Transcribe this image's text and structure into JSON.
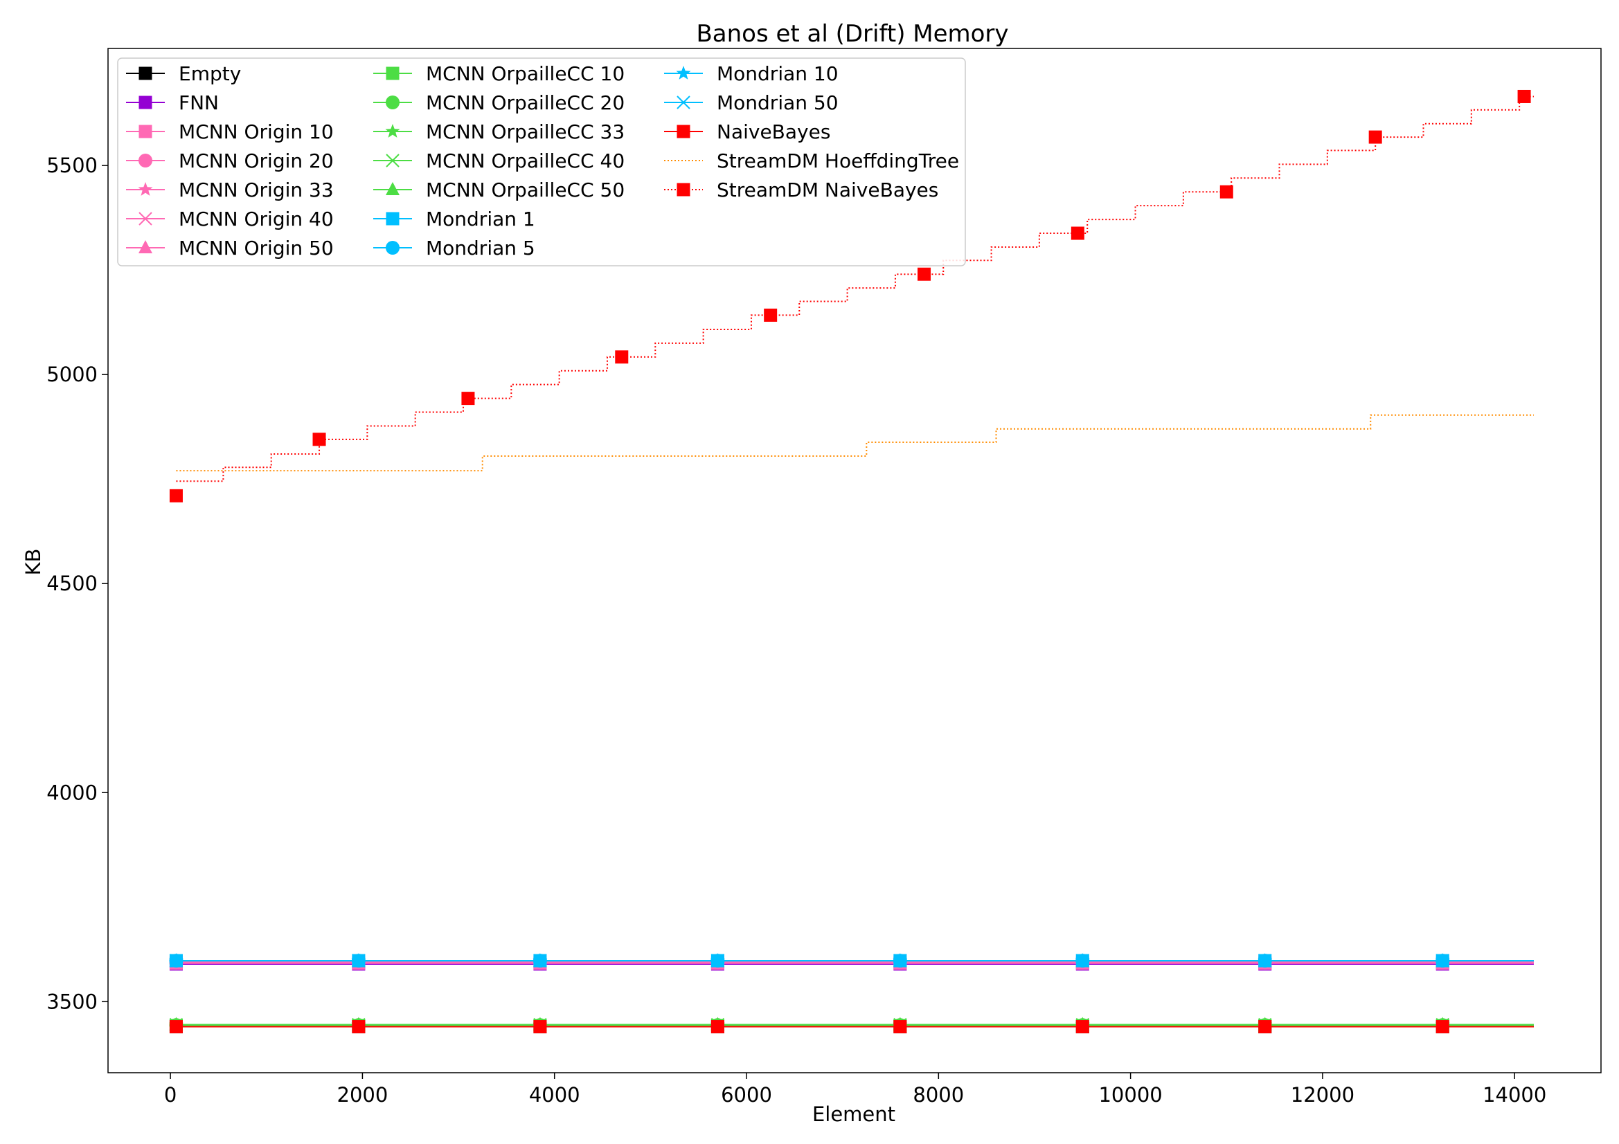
{
  "chart_data": {
    "type": "line",
    "title": "Banos et al (Drift) Memory",
    "xlabel": "Element",
    "ylabel": "KB",
    "xlim": [
      -650,
      14900
    ],
    "ylim": [
      3330,
      5780
    ],
    "xticks": [
      0,
      2000,
      4000,
      6000,
      8000,
      10000,
      12000,
      14000
    ],
    "yticks": [
      3500,
      4000,
      4500,
      5000,
      5500
    ],
    "grid": false,
    "legend_position": "top-left",
    "legend_columns": 3,
    "series": [
      {
        "name": "Empty",
        "color": "#000000",
        "marker": "square",
        "line": "solid",
        "x": [
          60,
          1960,
          3850,
          5700,
          7600,
          9500,
          11400,
          13250,
          14200
        ],
        "y": [
          3440,
          3440,
          3440,
          3440,
          3440,
          3440,
          3440,
          3440,
          3440
        ]
      },
      {
        "name": "FNN",
        "color": "#9400d3",
        "marker": "square",
        "line": "solid",
        "x": [
          60,
          1960,
          3850,
          5700,
          7600,
          9500,
          11400,
          13250,
          14200
        ],
        "y": [
          3590,
          3590,
          3590,
          3590,
          3590,
          3590,
          3590,
          3590,
          3590
        ]
      },
      {
        "name": "MCNN Origin 10",
        "color": "#ff69b4",
        "marker": "square",
        "line": "solid",
        "x": [
          60,
          1960,
          3850,
          5700,
          7600,
          9500,
          11400,
          13250,
          14200
        ],
        "y": [
          3592,
          3592,
          3592,
          3592,
          3592,
          3592,
          3592,
          3592,
          3592
        ]
      },
      {
        "name": "MCNN Origin 20",
        "color": "#ff69b4",
        "marker": "circle",
        "line": "solid",
        "x": [
          60,
          1960,
          3850,
          5700,
          7600,
          9500,
          11400,
          13250,
          14200
        ],
        "y": [
          3593,
          3593,
          3593,
          3593,
          3593,
          3593,
          3593,
          3593,
          3593
        ]
      },
      {
        "name": "MCNN Origin 33",
        "color": "#ff69b4",
        "marker": "star",
        "line": "solid",
        "x": [
          60,
          1960,
          3850,
          5700,
          7600,
          9500,
          11400,
          13250,
          14200
        ],
        "y": [
          3594,
          3594,
          3594,
          3594,
          3594,
          3594,
          3594,
          3594,
          3594
        ]
      },
      {
        "name": "MCNN Origin 40",
        "color": "#ff69b4",
        "marker": "x",
        "line": "solid",
        "x": [
          60,
          1960,
          3850,
          5700,
          7600,
          9500,
          11400,
          13250,
          14200
        ],
        "y": [
          3595,
          3595,
          3595,
          3595,
          3595,
          3595,
          3595,
          3595,
          3595
        ]
      },
      {
        "name": "MCNN Origin 50",
        "color": "#ff69b4",
        "marker": "triangle",
        "line": "solid",
        "x": [
          60,
          1960,
          3850,
          5700,
          7600,
          9500,
          11400,
          13250,
          14200
        ],
        "y": [
          3596,
          3596,
          3596,
          3596,
          3596,
          3596,
          3596,
          3596,
          3596
        ]
      },
      {
        "name": "MCNN OrpailleCC 10",
        "color": "#4cdd44",
        "marker": "square",
        "line": "solid",
        "x": [
          60,
          1960,
          3850,
          5700,
          7600,
          9500,
          11400,
          13250,
          14200
        ],
        "y": [
          3443,
          3443,
          3443,
          3443,
          3443,
          3443,
          3443,
          3443,
          3443
        ]
      },
      {
        "name": "MCNN OrpailleCC 20",
        "color": "#4cdd44",
        "marker": "circle",
        "line": "solid",
        "x": [
          60,
          1960,
          3850,
          5700,
          7600,
          9500,
          11400,
          13250,
          14200
        ],
        "y": [
          3444,
          3444,
          3444,
          3444,
          3444,
          3444,
          3444,
          3444,
          3444
        ]
      },
      {
        "name": "MCNN OrpailleCC 33",
        "color": "#4cdd44",
        "marker": "star",
        "line": "solid",
        "x": [
          60,
          1960,
          3850,
          5700,
          7600,
          9500,
          11400,
          13250,
          14200
        ],
        "y": [
          3444,
          3444,
          3444,
          3444,
          3444,
          3444,
          3444,
          3444,
          3444
        ]
      },
      {
        "name": "MCNN OrpailleCC 40",
        "color": "#4cdd44",
        "marker": "x",
        "line": "solid",
        "x": [
          60,
          1960,
          3850,
          5700,
          7600,
          9500,
          11400,
          13250,
          14200
        ],
        "y": [
          3445,
          3445,
          3445,
          3445,
          3445,
          3445,
          3445,
          3445,
          3445
        ]
      },
      {
        "name": "MCNN OrpailleCC 50",
        "color": "#4cdd44",
        "marker": "triangle",
        "line": "solid",
        "x": [
          60,
          1960,
          3850,
          5700,
          7600,
          9500,
          11400,
          13250,
          14200
        ],
        "y": [
          3445,
          3445,
          3445,
          3445,
          3445,
          3445,
          3445,
          3445,
          3445
        ]
      },
      {
        "name": "Mondrian 1",
        "color": "#00bfff",
        "marker": "square",
        "line": "solid",
        "x": [
          60,
          1960,
          3850,
          5700,
          7600,
          9500,
          11400,
          13250,
          14200
        ],
        "y": [
          3598,
          3598,
          3598,
          3598,
          3598,
          3598,
          3598,
          3598,
          3598
        ]
      },
      {
        "name": "Mondrian 5",
        "color": "#00bfff",
        "marker": "circle",
        "line": "solid",
        "x": [
          60,
          1960,
          3850,
          5700,
          7600,
          9500,
          11400,
          13250,
          14200
        ],
        "y": [
          3598,
          3598,
          3598,
          3598,
          3598,
          3598,
          3598,
          3598,
          3598
        ]
      },
      {
        "name": "Mondrian 10",
        "color": "#00bfff",
        "marker": "star",
        "line": "solid",
        "x": [
          60,
          1960,
          3850,
          5700,
          7600,
          9500,
          11400,
          13250,
          14200
        ],
        "y": [
          3598,
          3598,
          3598,
          3598,
          3598,
          3598,
          3598,
          3598,
          3598
        ]
      },
      {
        "name": "Mondrian 50",
        "color": "#00bfff",
        "marker": "x",
        "line": "solid",
        "x": [
          60,
          1960,
          3850,
          5700,
          7600,
          9500,
          11400,
          13250,
          14200
        ],
        "y": [
          3598,
          3598,
          3598,
          3598,
          3598,
          3598,
          3598,
          3598,
          3598
        ]
      },
      {
        "name": "NaiveBayes",
        "color": "#ff0000",
        "marker": "square",
        "line": "solid",
        "x": [
          60,
          1960,
          3850,
          5700,
          7600,
          9500,
          11400,
          13250,
          14200
        ],
        "y": [
          3440,
          3440,
          3440,
          3440,
          3440,
          3440,
          3440,
          3440,
          3440
        ]
      },
      {
        "name": "StreamDM HoeffdingTree",
        "color": "#ff8c00",
        "marker": "none",
        "line": "dotted",
        "x": [
          60,
          3250,
          7250,
          8600,
          12500,
          14200
        ],
        "y": [
          4770,
          4805,
          4838,
          4870,
          4903,
          4903
        ]
      },
      {
        "name": "StreamDM NaiveBayes",
        "color": "#ff0000",
        "marker": "square",
        "line": "dotted-steps",
        "x": [
          60,
          1550,
          3100,
          4700,
          6250,
          7850,
          9450,
          11000,
          12550,
          14100,
          14200
        ],
        "y": [
          4710,
          4845,
          4943,
          5042,
          5142,
          5240,
          5338,
          5437,
          5568,
          5665,
          5665
        ],
        "step_x": [
          60,
          550,
          1050,
          1550,
          2050,
          2550,
          3050,
          3550,
          4050,
          4550,
          5050,
          5550,
          6050,
          6550,
          7050,
          7550,
          8050,
          8550,
          9050,
          9550,
          10050,
          10550,
          11050,
          11550,
          12050,
          12550,
          13050,
          13550,
          14050,
          14200
        ],
        "step_y": [
          4745,
          4778,
          4810,
          4845,
          4877,
          4910,
          4943,
          4976,
          5009,
          5042,
          5075,
          5108,
          5142,
          5175,
          5207,
          5240,
          5273,
          5305,
          5338,
          5371,
          5404,
          5437,
          5470,
          5503,
          5536,
          5568,
          5600,
          5633,
          5665,
          5665
        ]
      }
    ]
  }
}
